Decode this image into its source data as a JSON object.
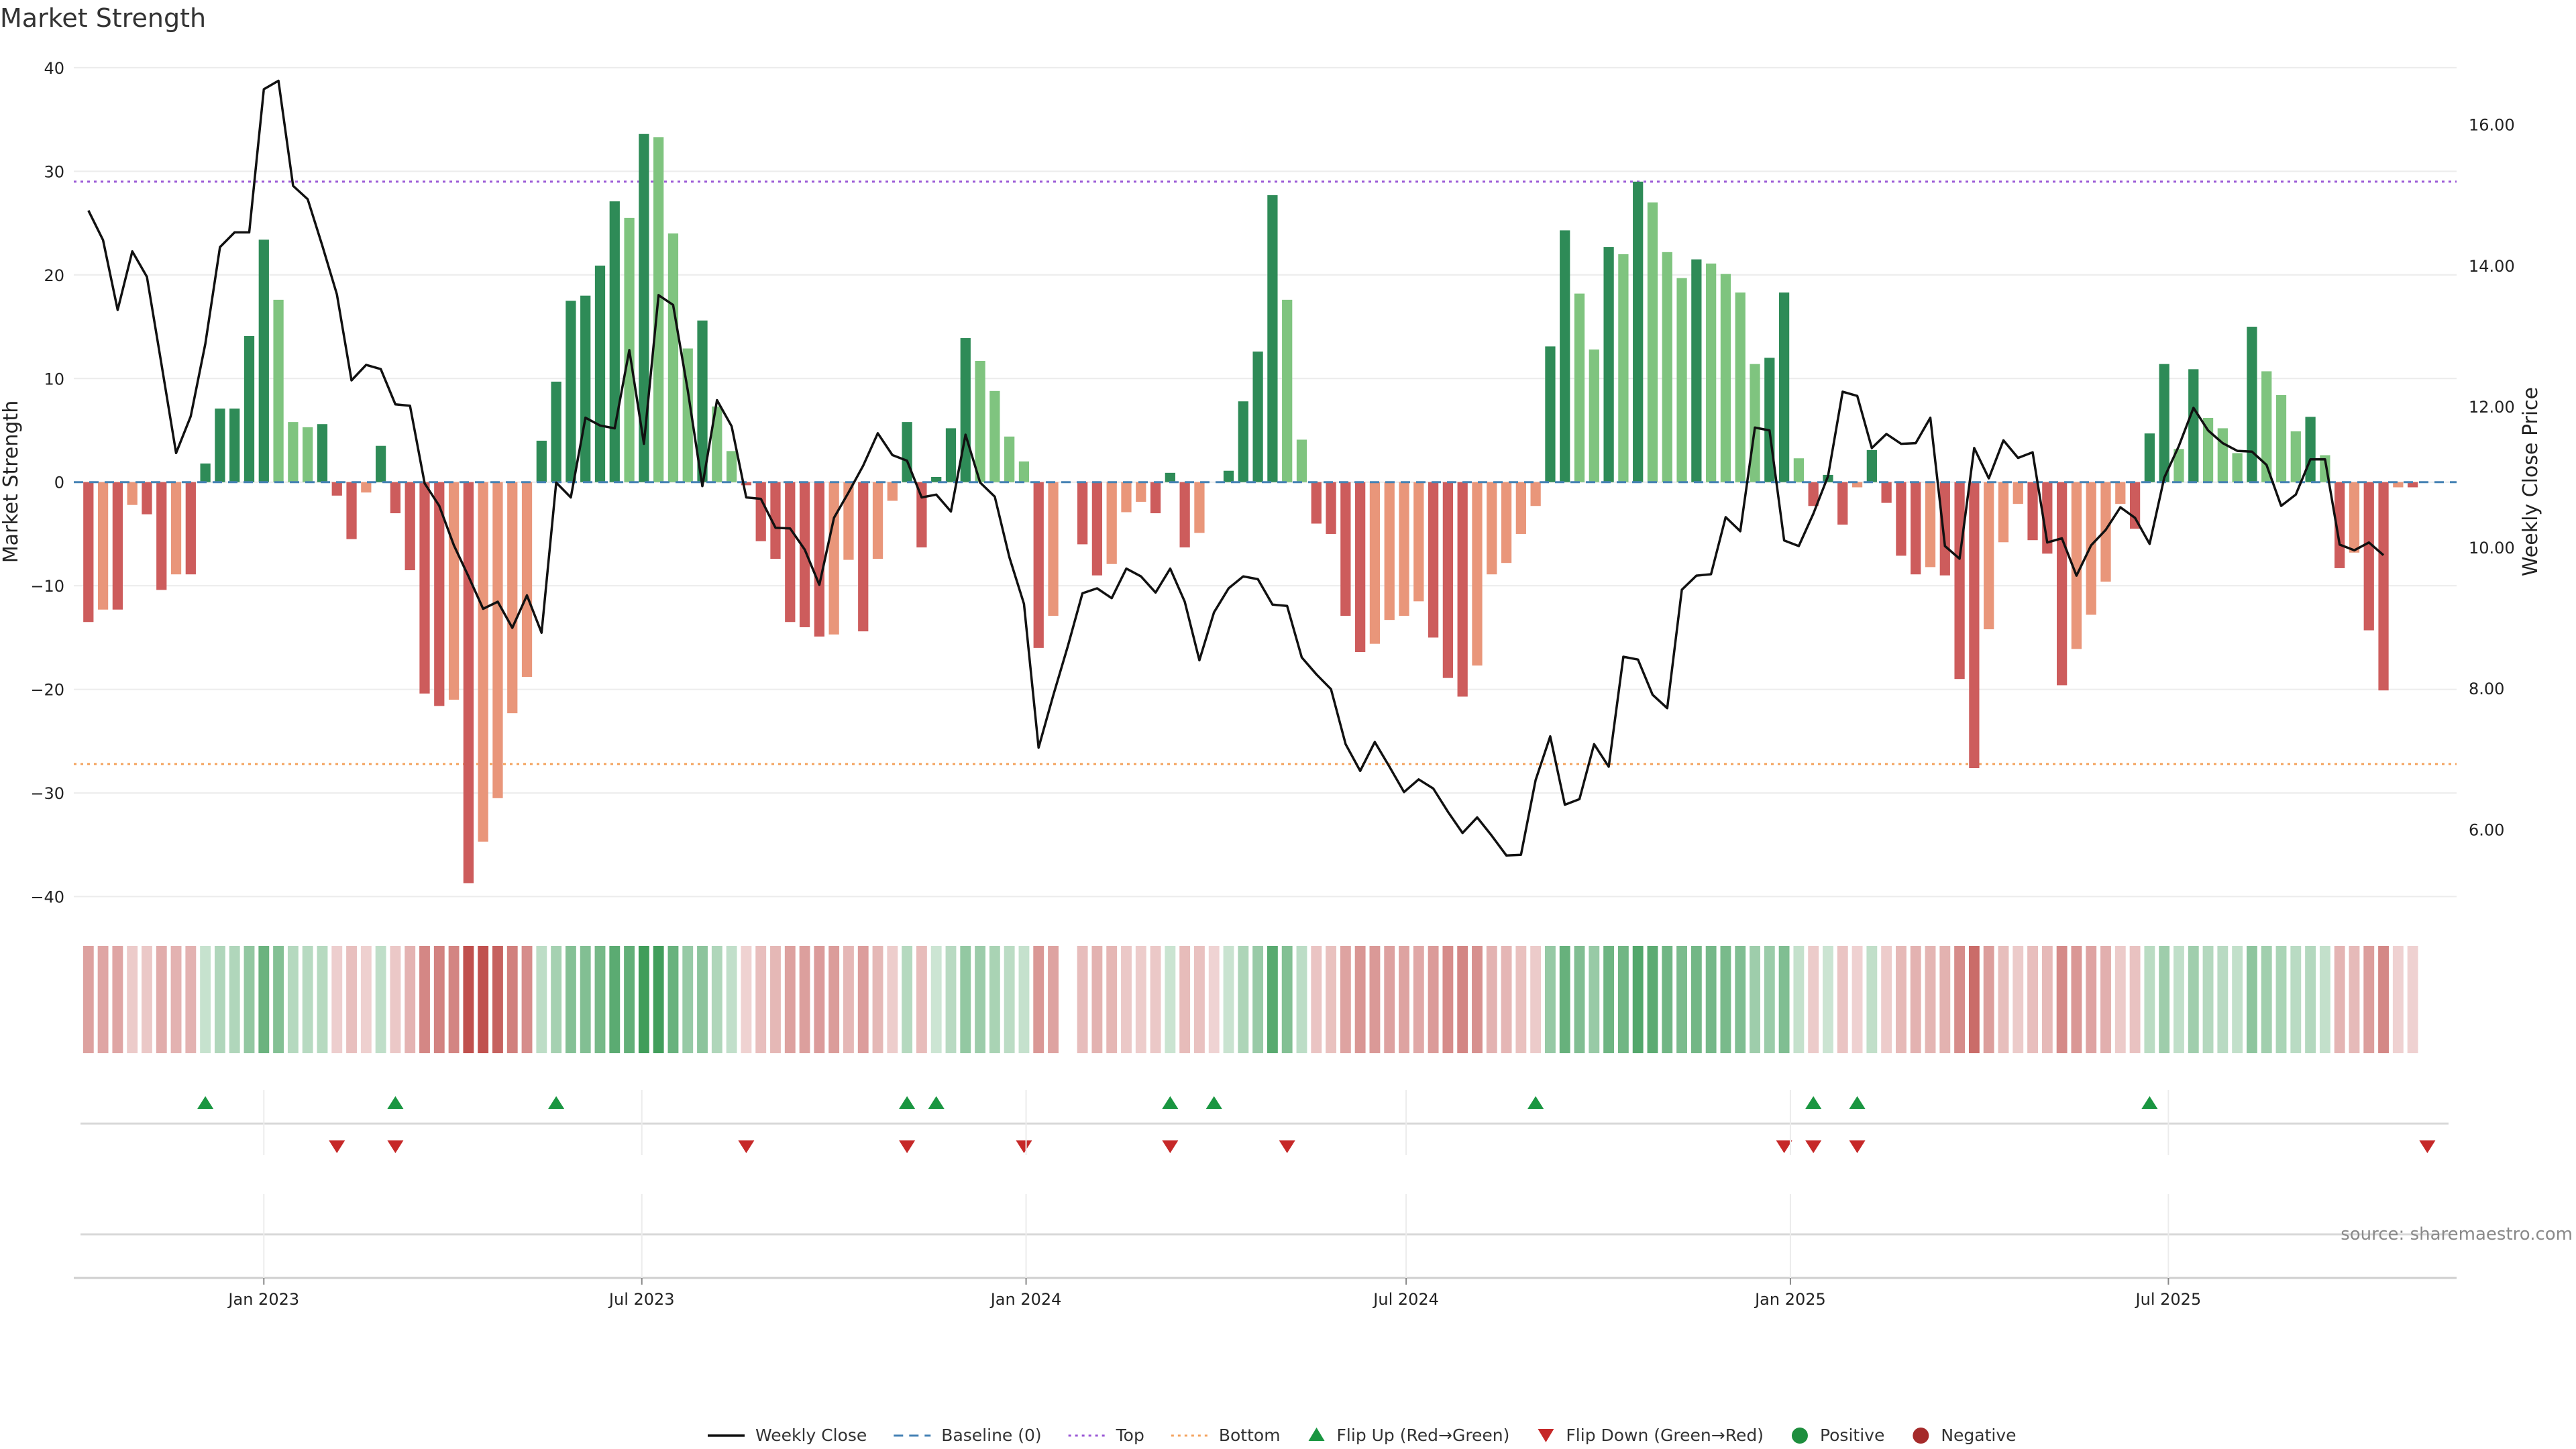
{
  "chart_data": {
    "type": "bar",
    "title": "Market Strength",
    "ylabel": "Market Strength",
    "y2label": "Weekly Close Price",
    "ylim": [
      -41,
      42
    ],
    "y2lim": [
      4.9,
      17.1
    ],
    "yticks": [
      40,
      30,
      20,
      10,
      0,
      -10,
      -20,
      -30,
      -40
    ],
    "yticklabels": [
      "40",
      "30",
      "20",
      "10",
      "0",
      "−10",
      "−20",
      "−30",
      "−40"
    ],
    "y2ticks": [
      16,
      14,
      12,
      10,
      8,
      6
    ],
    "y2ticklabels": [
      "16.00",
      "14.00",
      "12.00",
      "10.00",
      "8.00",
      "6.00"
    ],
    "xlim": [
      "2022-10-02",
      "2025-11-16"
    ],
    "xticks": [
      "2023-01-01",
      "2023-07-01",
      "2024-01-01",
      "2024-07-01",
      "2025-01-01",
      "2025-07-01"
    ],
    "xticklabels": [
      "Jan 2023",
      "Jul 2023",
      "Jan 2024",
      "Jul 2024",
      "Jan 2025",
      "Jul 2025"
    ],
    "reference_lines": {
      "top": 29,
      "bottom": -27.2,
      "baseline": 0
    },
    "colors": {
      "strong_positive": "#2e8b57",
      "weak_positive": "#7fc47f",
      "strong_negative": "#cd5c5c",
      "weak_negative": "#e9967a",
      "price_line": "#111111",
      "top_line": "#9b59d6",
      "bottom_line": "#f4a460",
      "baseline": "#4682b4",
      "flip_up": "#1a9641",
      "flip_down": "#c62828",
      "positive_dot": "#1e8e3e",
      "negative_dot": "#a52a2a"
    },
    "start_week": "2022-10-09",
    "weeks": 163,
    "strength": [
      -13.5,
      -12.3,
      -12.3,
      -2.2,
      -3.1,
      -10.4,
      -8.9,
      -8.9,
      1.8,
      7.1,
      7.1,
      14.1,
      23.4,
      17.6,
      5.8,
      5.3,
      5.6,
      -1.3,
      -5.5,
      -1.0,
      3.5,
      -3.0,
      -8.5,
      -20.4,
      -21.6,
      -21.0,
      -38.7,
      -34.7,
      -30.5,
      -22.3,
      -18.8,
      4.0,
      9.7,
      17.5,
      18.0,
      20.9,
      27.1,
      25.5,
      33.6,
      33.3,
      24.0,
      12.9,
      15.6,
      7.3,
      3.0,
      -0.3,
      -5.7,
      -7.4,
      -13.5,
      -14.0,
      -14.9,
      -14.7,
      -7.5,
      -14.4,
      -7.4,
      -1.8,
      5.8,
      -6.3,
      0.5,
      5.2,
      13.9,
      11.7,
      8.8,
      4.4,
      2.0,
      -16.0,
      -12.9,
      0.0,
      -6.0,
      -9.0,
      -7.9,
      -2.9,
      -1.9,
      -3.0,
      0.9,
      -6.3,
      -4.9,
      0.0,
      1.1,
      7.8,
      12.6,
      27.7,
      17.6,
      4.1,
      -4.0,
      -5.0,
      -12.9,
      -16.4,
      -15.6,
      -13.3,
      -12.9,
      -11.5,
      -15.0,
      -18.9,
      -20.7,
      -17.7,
      -8.9,
      -7.8,
      -5.0,
      -2.3,
      13.1,
      24.3,
      18.2,
      12.8,
      22.7,
      22.0,
      29.0,
      27.0,
      22.2,
      19.7,
      21.5,
      21.1,
      20.1,
      18.3,
      11.4,
      12.0,
      18.3,
      2.3,
      -2.3,
      0.7,
      -4.1,
      -0.5,
      3.1,
      -2.0,
      -7.1,
      -8.9,
      -8.2,
      -9.0,
      -19.0,
      -27.6,
      -14.2,
      -5.8,
      -2.1,
      -5.6,
      -6.9,
      -19.6,
      -16.1,
      -12.8,
      -9.6,
      -2.1,
      -4.5,
      4.7,
      11.4,
      3.2,
      10.9,
      6.2,
      5.2,
      2.8,
      15.0,
      10.7,
      8.4,
      4.9,
      6.3,
      2.6,
      -8.3,
      -6.8,
      -14.3,
      -20.1,
      -0.5,
      -0.5
    ],
    "price": [
      14.78,
      14.36,
      13.37,
      14.2,
      13.84,
      12.6,
      11.34,
      11.86,
      12.89,
      14.26,
      14.47,
      14.47,
      16.5,
      16.62,
      15.13,
      14.94,
      14.28,
      13.59,
      12.37,
      12.59,
      12.53,
      12.03,
      12.01,
      10.91,
      10.59,
      10.03,
      9.59,
      9.13,
      9.23,
      8.86,
      9.32,
      8.79,
      10.92,
      10.71,
      11.84,
      11.73,
      11.69,
      12.8,
      11.47,
      13.58,
      13.44,
      12.23,
      10.87,
      12.09,
      11.72,
      10.71,
      10.69,
      10.28,
      10.27,
      9.97,
      9.47,
      10.42,
      10.78,
      11.16,
      11.62,
      11.31,
      11.23,
      10.71,
      10.75,
      10.51,
      11.6,
      10.92,
      10.72,
      9.86,
      9.2,
      7.16,
      7.9,
      8.6,
      9.35,
      9.42,
      9.28,
      9.7,
      9.59,
      9.36,
      9.7,
      9.23,
      8.4,
      9.08,
      9.42,
      9.59,
      9.55,
      9.19,
      9.17,
      8.44,
      8.2,
      7.99,
      7.21,
      6.83,
      7.24,
      6.89,
      6.53,
      6.71,
      6.58,
      6.25,
      5.95,
      6.17,
      5.91,
      5.63,
      5.64,
      6.7,
      7.32,
      6.35,
      6.43,
      7.21,
      6.89,
      8.45,
      8.41,
      7.91,
      7.72,
      9.4,
      9.6,
      9.62,
      10.43,
      10.23,
      11.7,
      11.66,
      10.1,
      10.02,
      10.48,
      11.01,
      12.21,
      12.15,
      11.41,
      11.61,
      11.47,
      11.48,
      11.84,
      10.02,
      9.84,
      11.41,
      10.98,
      11.52,
      11.27,
      11.35,
      10.07,
      10.13,
      9.6,
      10.03,
      10.25,
      10.57,
      10.42,
      10.05,
      10.99,
      11.44,
      11.98,
      11.66,
      11.48,
      11.37,
      11.36,
      11.17,
      10.59,
      10.75,
      11.25,
      11.25,
      10.04,
      9.96,
      10.07,
      9.89,
      null,
      null
    ],
    "heatmap_blank_weeks": [
      67
    ],
    "flip_up_weeks": [
      8,
      21,
      32,
      56,
      58,
      74,
      77,
      99,
      118,
      121,
      141
    ],
    "flip_down_weeks": [
      17,
      21,
      45,
      56,
      64,
      74,
      82,
      116,
      118,
      121,
      160
    ],
    "source": "source: sharemaestro.com",
    "legend": [
      "Weekly Close",
      "Baseline (0)",
      "Top",
      "Bottom",
      "Flip Up (Red→Green)",
      "Flip Down (Green→Red)",
      "Positive",
      "Negative"
    ]
  }
}
